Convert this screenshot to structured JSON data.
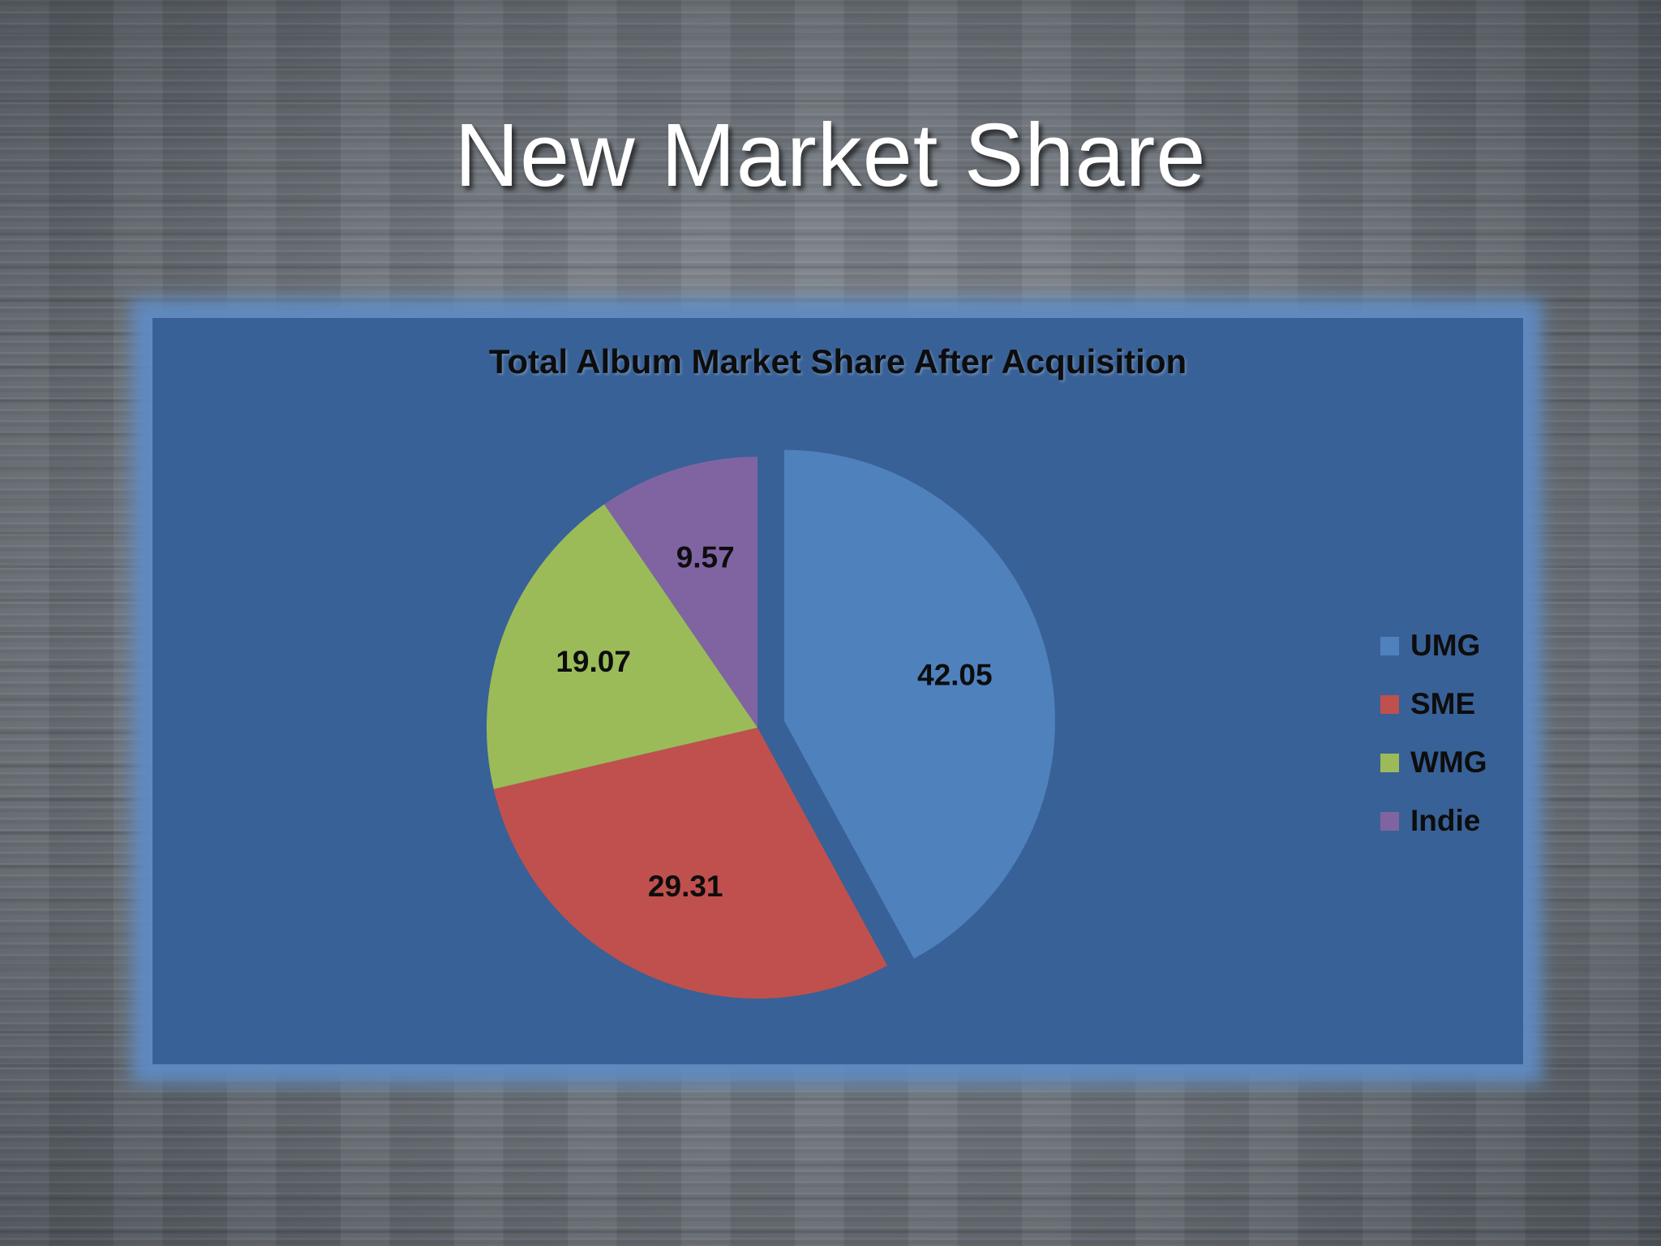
{
  "slide": {
    "title": "New Market Share"
  },
  "chart_data": {
    "type": "pie",
    "title": "Total Album Market Share After Acquisition",
    "categories": [
      "UMG",
      "SME",
      "WMG",
      "Indie"
    ],
    "values": [
      42.05,
      29.31,
      19.07,
      9.57
    ],
    "colors": [
      "#4f81bd",
      "#c0504d",
      "#9bbb59",
      "#8064a2"
    ],
    "exploded": [
      "UMG"
    ],
    "data_labels": [
      "42.05",
      "29.31",
      "19.07",
      "9.57"
    ],
    "legend": "right",
    "background": "#386197"
  }
}
